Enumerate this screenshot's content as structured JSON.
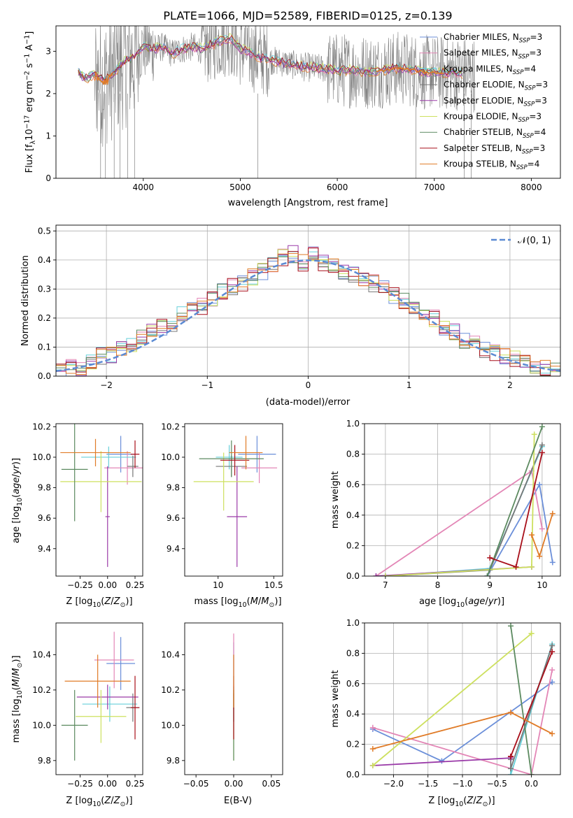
{
  "title": "PLATE=1066, MJD=52589, FIBERID=0125, z=0.139",
  "colors": {
    "series": [
      "#6b8fd9",
      "#e386b6",
      "#66cfd9",
      "#777777",
      "#9a3aa8",
      "#cde05f",
      "#5c8a60",
      "#a80f1a",
      "#e07b27"
    ]
  },
  "chart_data": [
    {
      "type": "line",
      "title": "PLATE=1066, MJD=52589, FIBERID=0125, z=0.139",
      "xlabel": "wavelength [Angstrom, rest frame]",
      "ylabel": "Flux [f_λ 10^-17 erg cm^-2 s^-1 A^-1]",
      "xlim": [
        3100,
        8300
      ],
      "ylim": [
        0,
        3.6
      ],
      "xticks": [
        4000,
        5000,
        6000,
        7000,
        8000
      ],
      "yticks": [
        0,
        1,
        2,
        3
      ],
      "grid": false,
      "legend_position": "right",
      "legend": [
        "Chabrier MILES, N_SSP=3",
        "Salpeter MILES, N_SSP=3",
        "Kroupa MILES, N_SSP=4",
        "Chabrier ELODIE, N_SSP=3",
        "Salpeter ELODIE, N_SSP=3",
        "Kroupa ELODIE, N_SSP=3",
        "Chabrier STELIB, N_SSP=4",
        "Salpeter STELIB, N_SSP=3",
        "Kroupa STELIB, N_SSP=4"
      ],
      "model_x": [
        3330,
        3400,
        3500,
        3600,
        3700,
        3800,
        3900,
        4000,
        4100,
        4200,
        4300,
        4400,
        4500,
        4600,
        4700,
        4800,
        4900,
        5000,
        5100,
        5200,
        5300,
        5400,
        5500,
        5600,
        5700,
        5800,
        5900,
        6000,
        6100,
        6200,
        6300,
        6400,
        6500,
        6600,
        6700,
        6800,
        6900,
        7000,
        7100,
        7200,
        7300,
        7400
      ],
      "model_y": [
        2.5,
        2.35,
        2.45,
        2.3,
        2.5,
        2.75,
        2.85,
        3.1,
        3.05,
        3.1,
        2.95,
        3.05,
        3.1,
        3.05,
        3.15,
        3.25,
        3.3,
        3.05,
        2.95,
        2.85,
        2.8,
        2.75,
        2.7,
        2.65,
        2.62,
        2.6,
        2.58,
        2.55,
        2.55,
        2.53,
        2.52,
        2.52,
        2.56,
        2.6,
        2.58,
        2.55,
        2.5,
        2.5,
        2.48,
        2.48,
        2.48,
        2.45
      ]
    },
    {
      "type": "line",
      "xlabel": "(data-model)/error",
      "ylabel": "Normed distribution",
      "xlim": [
        -2.5,
        2.5
      ],
      "ylim": [
        0,
        0.52
      ],
      "xticks": [
        -2,
        -1,
        0,
        1,
        2
      ],
      "yticks": [
        0.0,
        0.1,
        0.2,
        0.3,
        0.4,
        0.5
      ],
      "grid": true,
      "legend": [
        "𝒩(0, 1)"
      ],
      "legend_position": "top-right",
      "bin_width": 0.1,
      "bin_centers": [
        -2.45,
        -2.35,
        -2.25,
        -2.15,
        -2.05,
        -1.95,
        -1.85,
        -1.75,
        -1.65,
        -1.55,
        -1.45,
        -1.35,
        -1.25,
        -1.15,
        -1.05,
        -0.95,
        -0.85,
        -0.75,
        -0.65,
        -0.55,
        -0.45,
        -0.35,
        -0.25,
        -0.15,
        -0.05,
        0.05,
        0.15,
        0.25,
        0.35,
        0.45,
        0.55,
        0.65,
        0.75,
        0.85,
        0.95,
        1.05,
        1.15,
        1.25,
        1.35,
        1.45,
        1.55,
        1.65,
        1.75,
        1.85,
        1.95,
        2.05,
        2.15,
        2.25,
        2.35,
        2.45
      ],
      "histogram_mean": [
        0.02,
        0.03,
        0.03,
        0.05,
        0.07,
        0.07,
        0.09,
        0.11,
        0.13,
        0.15,
        0.17,
        0.18,
        0.22,
        0.23,
        0.24,
        0.27,
        0.29,
        0.31,
        0.32,
        0.34,
        0.36,
        0.38,
        0.41,
        0.42,
        0.39,
        0.42,
        0.39,
        0.38,
        0.36,
        0.35,
        0.33,
        0.32,
        0.3,
        0.28,
        0.26,
        0.23,
        0.22,
        0.2,
        0.17,
        0.15,
        0.12,
        0.11,
        0.09,
        0.08,
        0.07,
        0.06,
        0.05,
        0.04,
        0.03,
        0.02
      ],
      "curve": "normal(0,1)"
    },
    {
      "type": "scatter",
      "xlabel": "Z [log10(Z/Z⊙)]",
      "ylabel": "age  [log10(age/yr)]",
      "xlim": [
        -0.47,
        0.32
      ],
      "ylim": [
        9.22,
        10.22
      ],
      "xticks": [
        -0.25,
        0.0,
        0.25
      ],
      "xticklabels": [
        "−0.25",
        "0.00",
        "0.25"
      ],
      "yticks": [
        9.4,
        9.6,
        9.8,
        10.0,
        10.2
      ],
      "points": [
        {
          "x": 0.12,
          "y": 10.02,
          "xerr": 0.13,
          "yerr": 0.12
        },
        {
          "x": 0.18,
          "y": 9.93,
          "xerr": 0.21,
          "yerr": 0.11
        },
        {
          "x": 0.01,
          "y": 10.0,
          "xerr": 0.25,
          "yerr": 0.07
        },
        {
          "x": 0.23,
          "y": 9.94,
          "xerr": 0.05,
          "yerr": 0.07
        },
        {
          "x": 0.0,
          "y": 9.61,
          "xerr": 0.02,
          "yerr": 0.33
        },
        {
          "x": -0.06,
          "y": 9.84,
          "xerr": 0.37,
          "yerr": 0.2
        },
        {
          "x": -0.3,
          "y": 9.92,
          "xerr": 0.12,
          "yerr": 0.34
        },
        {
          "x": 0.25,
          "y": 10.02,
          "xerr": 0.04,
          "yerr": 0.09
        },
        {
          "x": -0.11,
          "y": 10.03,
          "xerr": 0.32,
          "yerr": 0.09
        }
      ]
    },
    {
      "type": "scatter",
      "xlabel": "mass [log10(M/M⊙)]",
      "xlim": [
        9.7,
        10.58
      ],
      "ylim": [
        9.22,
        10.22
      ],
      "xticks": [
        10.0,
        10.5
      ],
      "yticks": [
        9.4,
        9.6,
        9.8,
        10.0,
        10.2
      ],
      "points": [
        {
          "x": 10.35,
          "y": 10.02,
          "xerr": 0.17,
          "yerr": 0.12
        },
        {
          "x": 10.37,
          "y": 9.93,
          "xerr": 0.16,
          "yerr": 0.1
        },
        {
          "x": 10.1,
          "y": 10.0,
          "xerr": 0.12,
          "yerr": 0.08
        },
        {
          "x": 10.12,
          "y": 9.94,
          "xerr": 0.14,
          "yerr": 0.07
        },
        {
          "x": 10.17,
          "y": 9.61,
          "xerr": 0.09,
          "yerr": 0.33
        },
        {
          "x": 10.05,
          "y": 9.84,
          "xerr": 0.27,
          "yerr": 0.19
        },
        {
          "x": 10.12,
          "y": 9.99,
          "xerr": 0.29,
          "yerr": 0.12
        },
        {
          "x": 10.15,
          "y": 9.98,
          "xerr": 0.13,
          "yerr": 0.1
        },
        {
          "x": 10.25,
          "y": 10.03,
          "xerr": 0.15,
          "yerr": 0.11
        }
      ]
    },
    {
      "type": "line",
      "xlabel": "age  [log10(age/yr)]",
      "ylabel": "mass weight",
      "xlim": [
        6.6,
        10.35
      ],
      "ylim": [
        0,
        1.0
      ],
      "xticks": [
        7,
        8,
        9,
        10
      ],
      "yticks": [
        0.0,
        0.2,
        0.4,
        0.6,
        0.8,
        1.0
      ],
      "grid": true,
      "series": [
        {
          "x": [
            8.95,
            9.95,
            10.2
          ],
          "y": [
            0.0,
            0.6,
            0.09
          ]
        },
        {
          "x": [
            6.82,
            9.8,
            10.0
          ],
          "y": [
            0.0,
            0.69,
            0.31
          ]
        },
        {
          "x": [
            7.0,
            9.0,
            10.0
          ],
          "y": [
            0.0,
            0.05,
            0.85
          ]
        },
        {
          "x": [
            7.0,
            9.0,
            10.0
          ],
          "y": [
            0.0,
            0.04,
            0.86
          ]
        },
        {
          "x": [
            6.82,
            9.8
          ],
          "y": [
            0.0,
            0.06
          ]
        },
        {
          "x": [
            7.0,
            9.8,
            9.85
          ],
          "y": [
            0.0,
            0.06,
            0.93
          ]
        },
        {
          "x": [
            8.95,
            10.0
          ],
          "y": [
            0.0,
            0.98
          ]
        },
        {
          "x": [
            9.0,
            9.5,
            10.0
          ],
          "y": [
            0.12,
            0.06,
            0.81
          ]
        },
        {
          "x": [
            9.8,
            9.95,
            10.2
          ],
          "y": [
            0.27,
            0.13,
            0.41
          ]
        }
      ]
    },
    {
      "type": "scatter",
      "xlabel": "Z [log10(Z/Z⊙)]",
      "ylabel": "mass [log10(M/M⊙)]",
      "xlim": [
        -0.47,
        0.32
      ],
      "ylim": [
        9.72,
        10.58
      ],
      "xticks": [
        -0.25,
        0.0,
        0.25
      ],
      "xticklabels": [
        "−0.25",
        "0.00",
        "0.25"
      ],
      "yticks": [
        9.8,
        10.0,
        10.2,
        10.4
      ],
      "points": [
        {
          "x": 0.12,
          "y": 10.35,
          "xerr": 0.13,
          "yerr": 0.15
        },
        {
          "x": 0.06,
          "y": 10.37,
          "xerr": 0.18,
          "yerr": 0.16
        },
        {
          "x": 0.02,
          "y": 10.12,
          "xerr": 0.25,
          "yerr": 0.1
        },
        {
          "x": 0.23,
          "y": 10.1,
          "xerr": 0.06,
          "yerr": 0.08
        },
        {
          "x": 0.0,
          "y": 10.16,
          "xerr": 0.28,
          "yerr": 0.07
        },
        {
          "x": -0.06,
          "y": 10.05,
          "xerr": 0.23,
          "yerr": 0.15
        },
        {
          "x": -0.3,
          "y": 10.0,
          "xerr": 0.12,
          "yerr": 0.2
        },
        {
          "x": 0.25,
          "y": 10.1,
          "xerr": 0.04,
          "yerr": 0.18
        },
        {
          "x": -0.09,
          "y": 10.25,
          "xerr": 0.3,
          "yerr": 0.15
        }
      ]
    },
    {
      "type": "scatter",
      "xlabel": "E(B-V)",
      "xlim": [
        -0.065,
        0.065
      ],
      "ylim": [
        9.72,
        10.58
      ],
      "xticks": [
        -0.05,
        0.0,
        0.05
      ],
      "xticklabels": [
        "−0.05",
        "0.00",
        "0.05"
      ],
      "yticks": [
        9.8,
        10.0,
        10.2,
        10.4
      ],
      "points": [
        {
          "x": 0.0,
          "y": 10.35,
          "xerr": 0.0,
          "yerr": 0.12
        },
        {
          "x": 0.0,
          "y": 10.4,
          "xerr": 0.0,
          "yerr": 0.12
        },
        {
          "x": 0.0,
          "y": 10.12,
          "xerr": 0.0,
          "yerr": 0.1
        },
        {
          "x": 0.0,
          "y": 10.1,
          "xerr": 0.0,
          "yerr": 0.08
        },
        {
          "x": 0.0,
          "y": 10.16,
          "xerr": 0.0,
          "yerr": 0.07
        },
        {
          "x": 0.0,
          "y": 10.0,
          "xerr": 0.0,
          "yerr": 0.2
        },
        {
          "x": 0.0,
          "y": 10.0,
          "xerr": 0.0,
          "yerr": 0.2
        },
        {
          "x": 0.0,
          "y": 10.1,
          "xerr": 0.0,
          "yerr": 0.18
        },
        {
          "x": 0.0,
          "y": 10.25,
          "xerr": 0.0,
          "yerr": 0.15
        }
      ]
    },
    {
      "type": "line",
      "xlabel": "Z [log10(Z/Z⊙)]",
      "ylabel": "mass weight",
      "xlim": [
        -2.42,
        0.42
      ],
      "ylim": [
        0,
        1.0
      ],
      "xticks": [
        -2.0,
        -1.5,
        -1.0,
        -0.5,
        0.0
      ],
      "xticklabels": [
        "−2.0",
        "−1.5",
        "−1.0",
        "−0.5",
        "0.0"
      ],
      "yticks": [
        0.0,
        0.2,
        0.4,
        0.6,
        0.8,
        1.0
      ],
      "grid": true,
      "series": [
        {
          "x": [
            -2.3,
            -1.3,
            0.3
          ],
          "y": [
            0.3,
            0.09,
            0.61
          ]
        },
        {
          "x": [
            -2.3,
            0.0,
            0.3
          ],
          "y": [
            0.31,
            0.0,
            0.69
          ]
        },
        {
          "x": [
            -0.3,
            -0.3,
            0.3
          ],
          "y": [
            0.04,
            0.0,
            0.86
          ]
        },
        {
          "x": [
            -0.3,
            -0.3,
            0.3
          ],
          "y": [
            0.1,
            0.04,
            0.85
          ]
        },
        {
          "x": [
            -2.3,
            -0.3,
            -0.3
          ],
          "y": [
            0.06,
            0.11,
            0.12
          ]
        },
        {
          "x": [
            -2.3,
            0.0,
            0.0
          ],
          "y": [
            0.06,
            0.93,
            0.93
          ]
        },
        {
          "x": [
            -0.3,
            0.0
          ],
          "y": [
            0.98,
            0.0
          ]
        },
        {
          "x": [
            -0.3,
            -0.3,
            0.3
          ],
          "y": [
            0.12,
            0.12,
            0.81
          ]
        },
        {
          "x": [
            -2.3,
            -0.3,
            0.3
          ],
          "y": [
            0.17,
            0.41,
            0.27
          ]
        }
      ]
    }
  ]
}
